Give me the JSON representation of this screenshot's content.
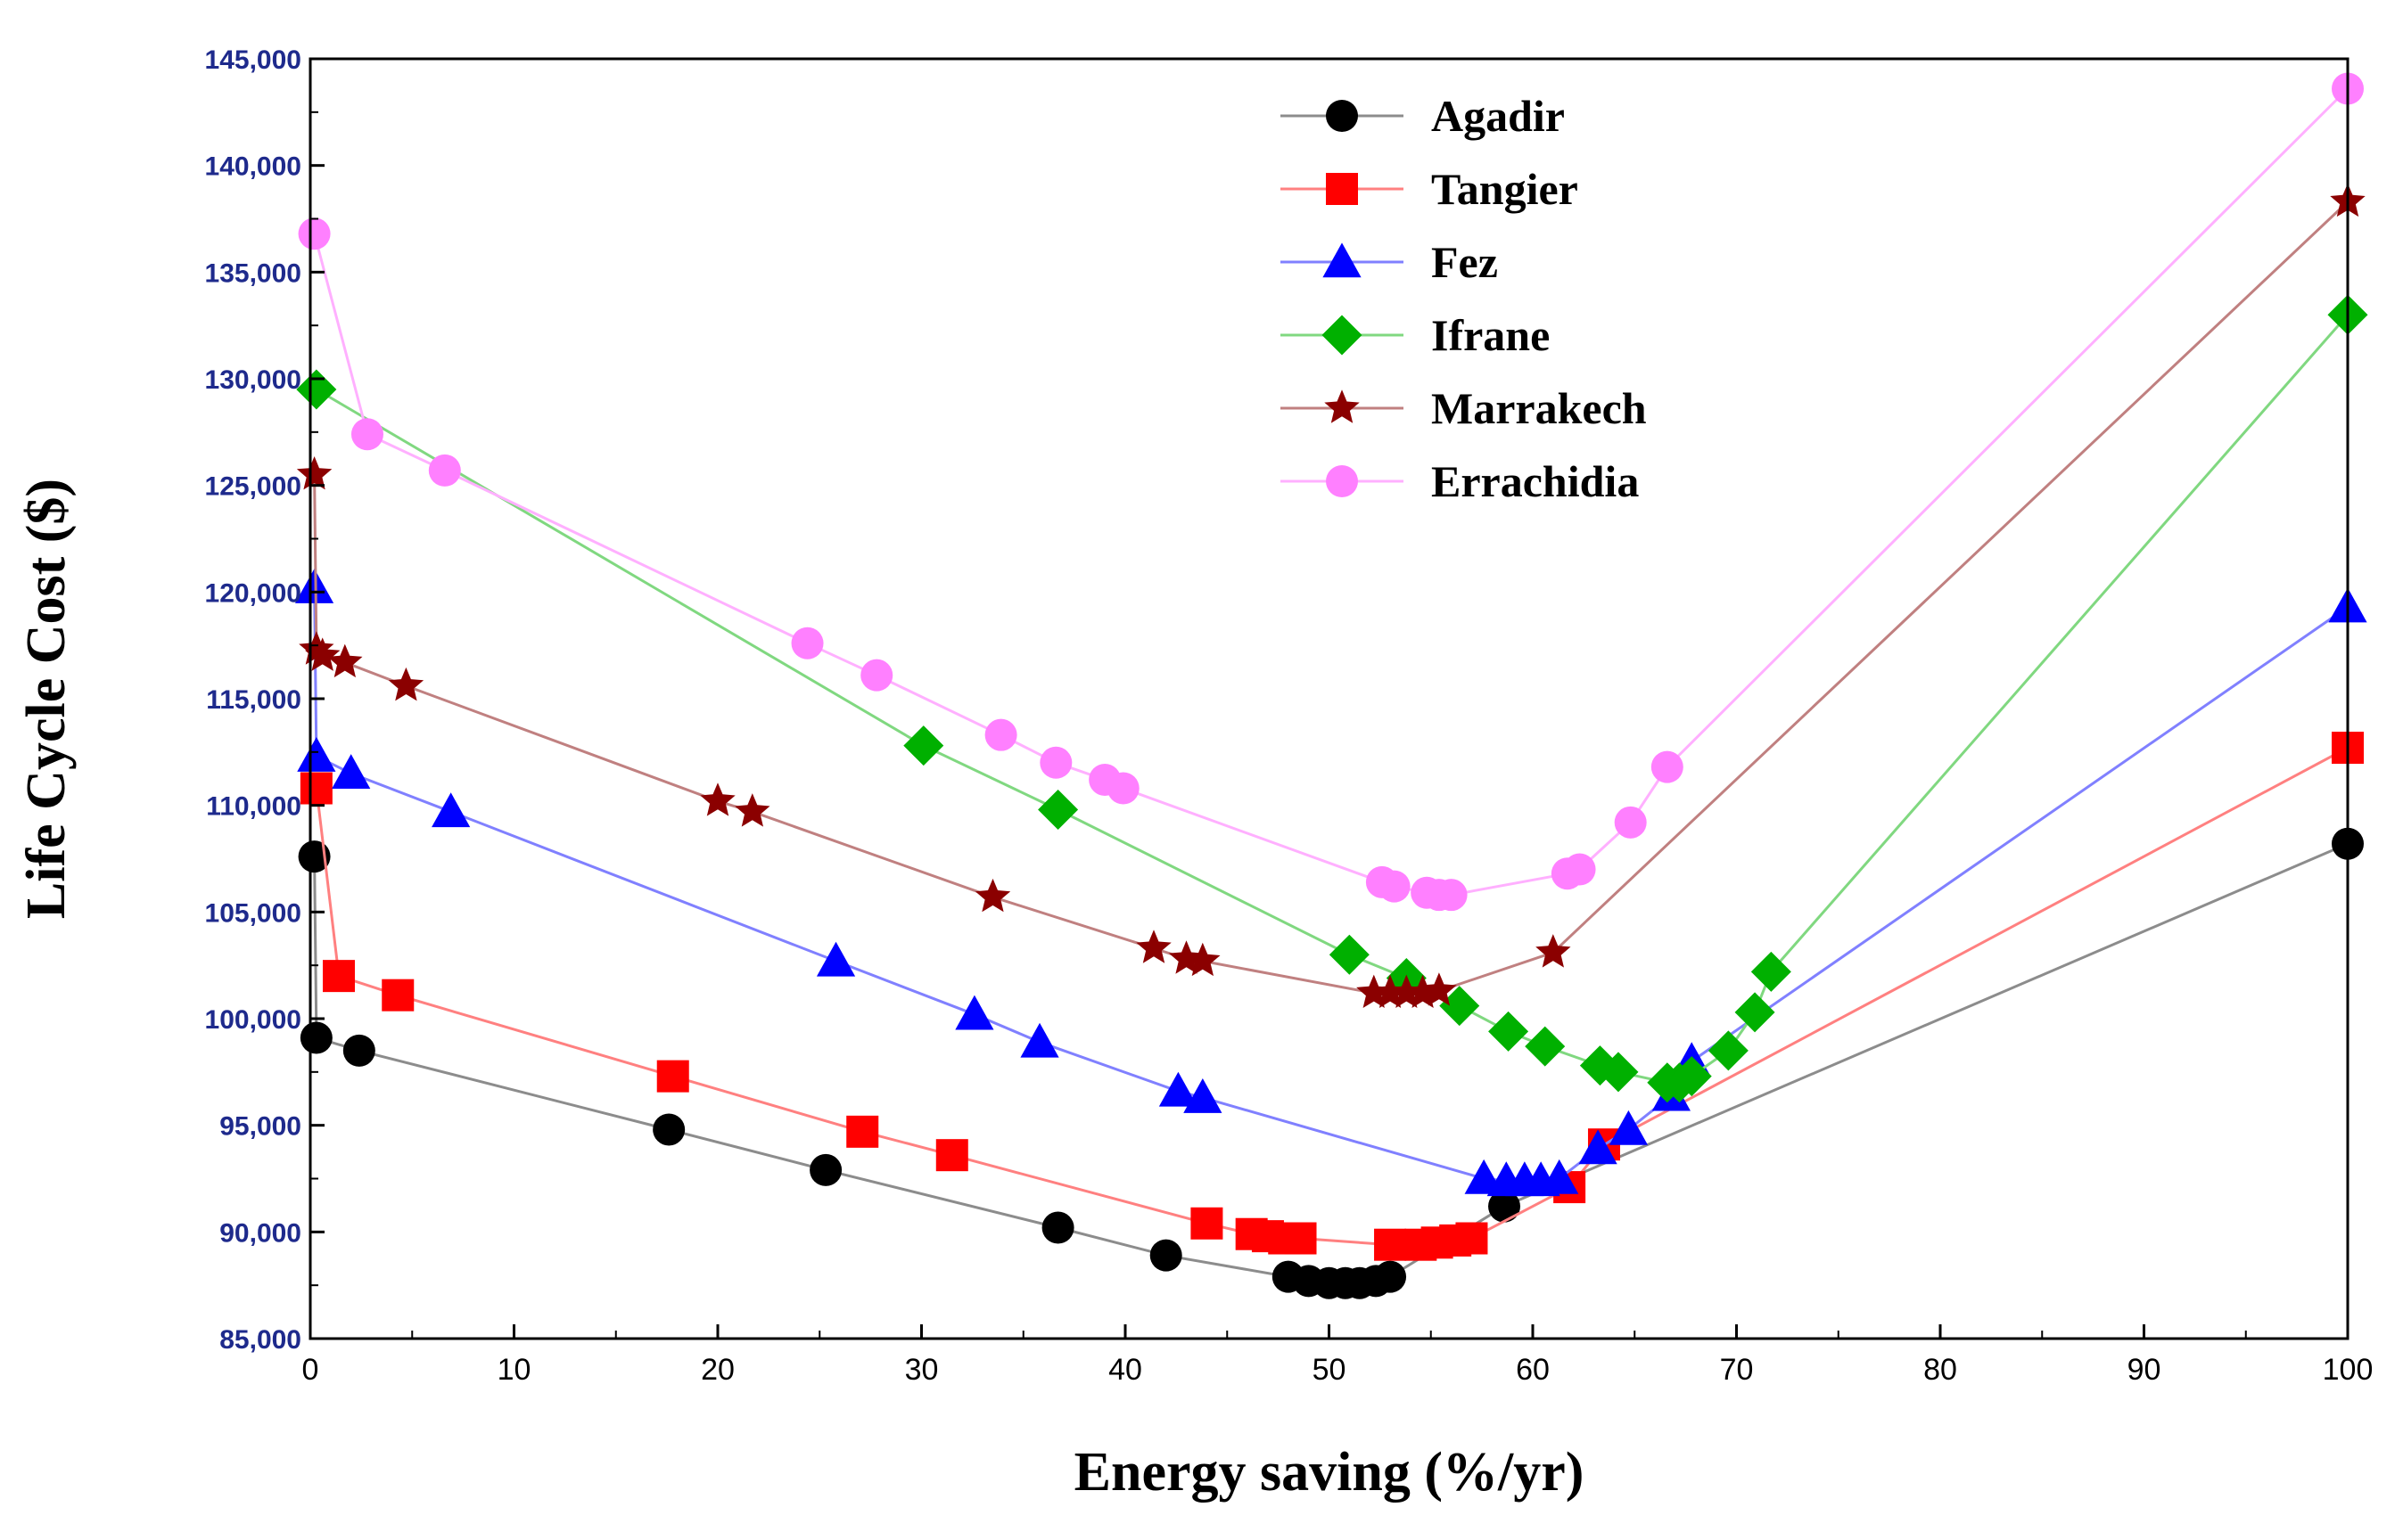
{
  "chart_data": {
    "type": "line",
    "title": "",
    "xlabel": "Energy saving (%/yr)",
    "ylabel": "Life Cycle Cost ($)",
    "xlim": [
      0,
      100
    ],
    "ylim": [
      85000,
      145000
    ],
    "x_ticks": [
      0,
      10,
      20,
      30,
      40,
      50,
      60,
      70,
      80,
      90,
      100
    ],
    "y_ticks": [
      85000,
      90000,
      95000,
      100000,
      105000,
      110000,
      115000,
      120000,
      125000,
      130000,
      135000,
      140000,
      145000
    ],
    "y_tick_labels": [
      "85,000",
      "90,000",
      "95,000",
      "100,000",
      "105,000",
      "110,000",
      "115,000",
      "120,000",
      "125,000",
      "130,000",
      "135,000",
      "140,000",
      "145,000"
    ],
    "grid": false,
    "legend_position": "top-center",
    "series": [
      {
        "name": "Agadir",
        "marker": "circle",
        "marker_color": "#000000",
        "line_color": "#8c8c8c",
        "x": [
          0.2,
          0.3,
          2.4,
          17.6,
          25.3,
          36.7,
          42.0,
          48.0,
          49.0,
          50.0,
          50.8,
          51.5,
          52.3,
          53.0,
          58.6,
          100
        ],
        "y": [
          107600,
          99100,
          98500,
          94800,
          92900,
          90200,
          88900,
          87900,
          87700,
          87600,
          87600,
          87600,
          87700,
          87900,
          91200,
          108200
        ]
      },
      {
        "name": "Tangier",
        "marker": "square",
        "marker_color": "#ff0000",
        "line_color": "#ff8080",
        "x": [
          0.3,
          1.4,
          4.3,
          17.8,
          27.1,
          31.5,
          44.0,
          46.2,
          47.0,
          47.8,
          48.6,
          53.0,
          54.5,
          55.3,
          56.2,
          57.0,
          61.8,
          63.5,
          100
        ],
        "y": [
          110800,
          102000,
          101100,
          97300,
          94700,
          93600,
          90400,
          89900,
          89800,
          89700,
          89700,
          89400,
          89400,
          89500,
          89600,
          89700,
          92100,
          94100,
          112700
        ]
      },
      {
        "name": "Fez",
        "marker": "triangle",
        "marker_color": "#0000ff",
        "line_color": "#8080ff",
        "x": [
          0.2,
          0.3,
          2.0,
          6.9,
          25.8,
          32.6,
          35.8,
          42.6,
          43.8,
          57.6,
          58.7,
          59.6,
          60.4,
          61.3,
          63.2,
          64.7,
          66.8,
          67.8,
          100
        ],
        "y": [
          120200,
          112300,
          111500,
          109700,
          102700,
          100200,
          98900,
          96600,
          96300,
          92500,
          92400,
          92400,
          92400,
          92500,
          93900,
          94800,
          96400,
          98000,
          119300
        ]
      },
      {
        "name": "Ifrane",
        "marker": "diamond",
        "marker_color": "#00b000",
        "line_color": "#80d880",
        "x": [
          0.3,
          30.1,
          36.7,
          51.0,
          53.8,
          56.4,
          58.8,
          60.6,
          63.3,
          64.2,
          66.6,
          67.2,
          67.8,
          69.6,
          70.9,
          71.7,
          100
        ],
        "y": [
          129500,
          112800,
          109800,
          103000,
          101900,
          100600,
          99400,
          98700,
          97800,
          97500,
          97000,
          97000,
          97300,
          98500,
          100300,
          102200,
          133000
        ]
      },
      {
        "name": "Marrakech",
        "marker": "star",
        "marker_color": "#8b0000",
        "line_color": "#c08080",
        "x": [
          0.2,
          0.3,
          0.6,
          1.7,
          4.7,
          20.0,
          21.7,
          33.5,
          41.4,
          43.0,
          43.8,
          52.2,
          53.0,
          53.8,
          54.6,
          55.4,
          61.0,
          100
        ],
        "y": [
          125500,
          117300,
          117000,
          116700,
          115600,
          110200,
          109700,
          105700,
          103300,
          102800,
          102700,
          101200,
          101200,
          101200,
          101200,
          101300,
          103100,
          138300
        ]
      },
      {
        "name": "Errachidia",
        "marker": "circle",
        "marker_color": "#ff80ff",
        "line_color": "#ffb0ff",
        "x": [
          0.2,
          2.8,
          6.6,
          24.4,
          27.8,
          33.9,
          36.6,
          39.0,
          39.9,
          52.6,
          53.2,
          54.8,
          55.4,
          56.0,
          61.7,
          62.3,
          64.8,
          66.6,
          100
        ],
        "y": [
          136800,
          127400,
          125700,
          117600,
          116100,
          113300,
          112000,
          111200,
          110800,
          106400,
          106200,
          105900,
          105800,
          105800,
          106800,
          107000,
          109200,
          111800,
          143600
        ]
      }
    ]
  }
}
